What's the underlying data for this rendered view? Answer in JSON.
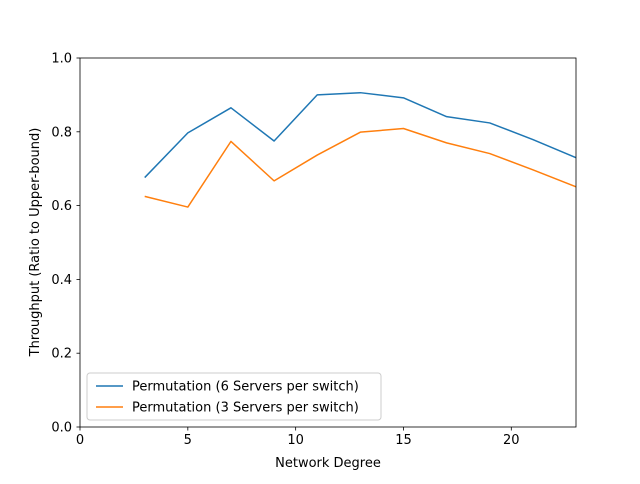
{
  "chart_data": {
    "type": "line",
    "title": "",
    "xlabel": "Network Degree",
    "ylabel": "Throughput (Ratio to Upper-bound)",
    "xlim": [
      0,
      23
    ],
    "ylim": [
      0.0,
      1.0
    ],
    "xticks": [
      0,
      5,
      10,
      15,
      20
    ],
    "xtick_labels": [
      "0",
      "5",
      "10",
      "15",
      "20"
    ],
    "yticks": [
      0.0,
      0.2,
      0.4,
      0.6,
      0.8,
      1.0
    ],
    "ytick_labels": [
      "0.0",
      "0.2",
      "0.4",
      "0.6",
      "0.8",
      "1.0"
    ],
    "grid": false,
    "legend_position": "lower-left",
    "x": [
      3,
      5,
      7,
      9,
      11,
      13,
      15,
      17,
      19,
      21,
      23
    ],
    "series": [
      {
        "name": "Permutation (6 Servers per switch)",
        "color": "#1f77b4",
        "values": [
          0.676,
          0.797,
          0.865,
          0.775,
          0.9,
          0.906,
          0.892,
          0.841,
          0.824,
          0.779,
          0.73
        ]
      },
      {
        "name": "Permutation (3 Servers per switch)",
        "color": "#ff7f0e",
        "values": [
          0.625,
          0.596,
          0.774,
          0.667,
          0.737,
          0.799,
          0.809,
          0.77,
          0.741,
          0.697,
          0.651
        ]
      }
    ]
  }
}
